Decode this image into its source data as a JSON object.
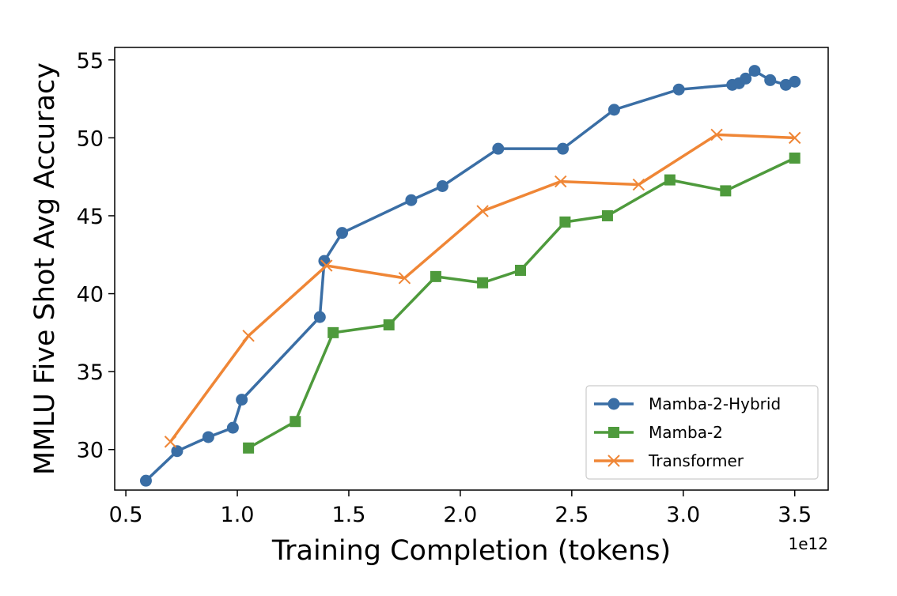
{
  "chart_data": {
    "type": "line",
    "title": "",
    "xlabel": "Training Completion (tokens)",
    "ylabel": "MMLU Five Shot Avg Accuracy",
    "x_offset_label": "1e12",
    "xlim": [
      0.45,
      3.65
    ],
    "ylim": [
      27.4,
      55.8
    ],
    "xticks": [
      0.5,
      1.0,
      1.5,
      2.0,
      2.5,
      3.0,
      3.5
    ],
    "xtick_labels": [
      "0.5",
      "1.0",
      "1.5",
      "2.0",
      "2.5",
      "3.0",
      "3.5"
    ],
    "yticks": [
      30,
      35,
      40,
      45,
      50,
      55
    ],
    "ytick_labels": [
      "30",
      "35",
      "40",
      "45",
      "50",
      "55"
    ],
    "grid": false,
    "legend_position": "bottom-right",
    "series": [
      {
        "name": "Mamba-2-Hybrid",
        "color": "#3a6ea5",
        "marker": "circle",
        "x": [
          0.59,
          0.73,
          0.87,
          0.98,
          1.02,
          1.37,
          1.39,
          1.47,
          1.78,
          1.92,
          2.17,
          2.46,
          2.69,
          2.98,
          3.22,
          3.25,
          3.28,
          3.32,
          3.39,
          3.46,
          3.5
        ],
        "y": [
          28.0,
          29.9,
          30.8,
          31.4,
          33.2,
          38.5,
          42.1,
          43.9,
          46.0,
          46.9,
          49.3,
          49.3,
          51.8,
          53.1,
          53.4,
          53.5,
          53.8,
          54.3,
          53.7,
          53.4,
          53.6
        ]
      },
      {
        "name": "Mamba-2",
        "color": "#4e9a3c",
        "marker": "square",
        "x": [
          1.05,
          1.26,
          1.43,
          1.68,
          1.89,
          2.1,
          2.27,
          2.47,
          2.66,
          2.94,
          3.19,
          3.5
        ],
        "y": [
          30.1,
          31.8,
          37.5,
          38.0,
          41.1,
          40.7,
          41.5,
          44.6,
          45.0,
          47.3,
          46.6,
          48.7
        ]
      },
      {
        "name": "Transformer",
        "color": "#ef8636",
        "marker": "x",
        "x": [
          0.7,
          1.05,
          1.4,
          1.75,
          2.1,
          2.45,
          2.8,
          3.15,
          3.5
        ],
        "y": [
          30.5,
          37.3,
          41.8,
          41.0,
          45.3,
          47.2,
          47.0,
          50.2,
          50.0
        ]
      }
    ]
  }
}
